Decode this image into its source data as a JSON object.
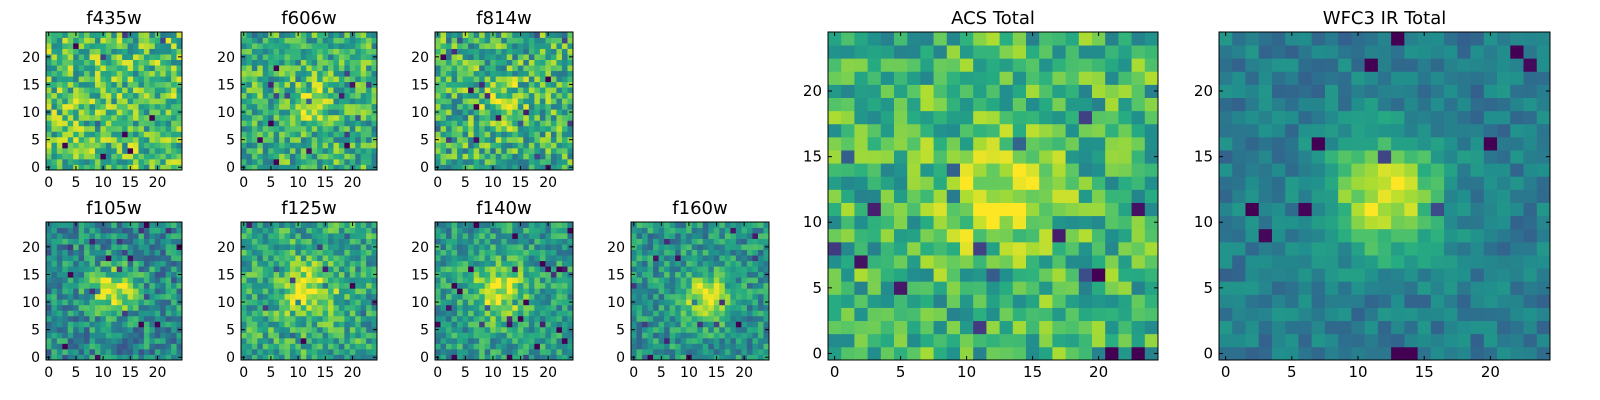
{
  "chart_data": [
    {
      "type": "heatmap",
      "title": "f435w",
      "xlabel": "",
      "ylabel": "",
      "xlim": [
        -0.5,
        24.5
      ],
      "ylim": [
        -0.5,
        24.5
      ],
      "xticks": [
        0,
        5,
        10,
        15,
        20
      ],
      "yticks": [
        0,
        5,
        10,
        15,
        20
      ],
      "grid": false,
      "colormap": "viridis",
      "pixel_grid": [
        25,
        25
      ]
    },
    {
      "type": "heatmap",
      "title": "f606w",
      "xlabel": "",
      "ylabel": "",
      "xlim": [
        -0.5,
        24.5
      ],
      "ylim": [
        -0.5,
        24.5
      ],
      "xticks": [
        0,
        5,
        10,
        15,
        20
      ],
      "yticks": [
        0,
        5,
        10,
        15,
        20
      ],
      "grid": false,
      "colormap": "viridis",
      "pixel_grid": [
        25,
        25
      ]
    },
    {
      "type": "heatmap",
      "title": "f814w",
      "xlabel": "",
      "ylabel": "",
      "xlim": [
        -0.5,
        24.5
      ],
      "ylim": [
        -0.5,
        24.5
      ],
      "xticks": [
        0,
        5,
        10,
        15,
        20
      ],
      "yticks": [
        0,
        5,
        10,
        15,
        20
      ],
      "grid": false,
      "colormap": "viridis",
      "pixel_grid": [
        25,
        25
      ]
    },
    {
      "type": "heatmap",
      "title": "f105w",
      "xlabel": "",
      "ylabel": "",
      "xlim": [
        -0.5,
        24.5
      ],
      "ylim": [
        -0.5,
        24.5
      ],
      "xticks": [
        0,
        5,
        10,
        15,
        20
      ],
      "yticks": [
        0,
        5,
        10,
        15,
        20
      ],
      "grid": false,
      "colormap": "viridis",
      "pixel_grid": [
        25,
        25
      ]
    },
    {
      "type": "heatmap",
      "title": "f125w",
      "xlabel": "",
      "ylabel": "",
      "xlim": [
        -0.5,
        24.5
      ],
      "ylim": [
        -0.5,
        24.5
      ],
      "xticks": [
        0,
        5,
        10,
        15,
        20
      ],
      "yticks": [
        0,
        5,
        10,
        15,
        20
      ],
      "grid": false,
      "colormap": "viridis",
      "pixel_grid": [
        25,
        25
      ]
    },
    {
      "type": "heatmap",
      "title": "f140w",
      "xlabel": "",
      "ylabel": "",
      "xlim": [
        -0.5,
        24.5
      ],
      "ylim": [
        -0.5,
        24.5
      ],
      "xticks": [
        0,
        5,
        10,
        15,
        20
      ],
      "yticks": [
        0,
        5,
        10,
        15,
        20
      ],
      "grid": false,
      "colormap": "viridis",
      "pixel_grid": [
        25,
        25
      ]
    },
    {
      "type": "heatmap",
      "title": "f160w",
      "xlabel": "",
      "ylabel": "",
      "xlim": [
        -0.5,
        24.5
      ],
      "ylim": [
        -0.5,
        24.5
      ],
      "xticks": [
        0,
        5,
        10,
        15,
        20
      ],
      "yticks": [
        0,
        5,
        10,
        15,
        20
      ],
      "grid": false,
      "colormap": "viridis",
      "pixel_grid": [
        25,
        25
      ]
    },
    {
      "type": "heatmap",
      "title": "ACS Total",
      "xlabel": "",
      "ylabel": "",
      "xlim": [
        -0.5,
        24.5
      ],
      "ylim": [
        -0.5,
        24.5
      ],
      "xticks": [
        0,
        5,
        10,
        15,
        20
      ],
      "yticks": [
        0,
        5,
        10,
        15,
        20
      ],
      "grid": false,
      "colormap": "viridis",
      "pixel_grid": [
        25,
        25
      ]
    },
    {
      "type": "heatmap",
      "title": "WFC3 IR Total",
      "xlabel": "",
      "ylabel": "",
      "xlim": [
        -0.5,
        24.5
      ],
      "ylim": [
        -0.5,
        24.5
      ],
      "xticks": [
        0,
        5,
        10,
        15,
        20
      ],
      "yticks": [
        0,
        5,
        10,
        15,
        20
      ],
      "grid": false,
      "colormap": "viridis",
      "pixel_grid": [
        25,
        25
      ]
    }
  ],
  "colors": {
    "viridis_dark": "#440154",
    "viridis_mid": "#21918c",
    "viridis_bright": "#fde725",
    "axis": "#000000",
    "background": "#ffffff"
  }
}
